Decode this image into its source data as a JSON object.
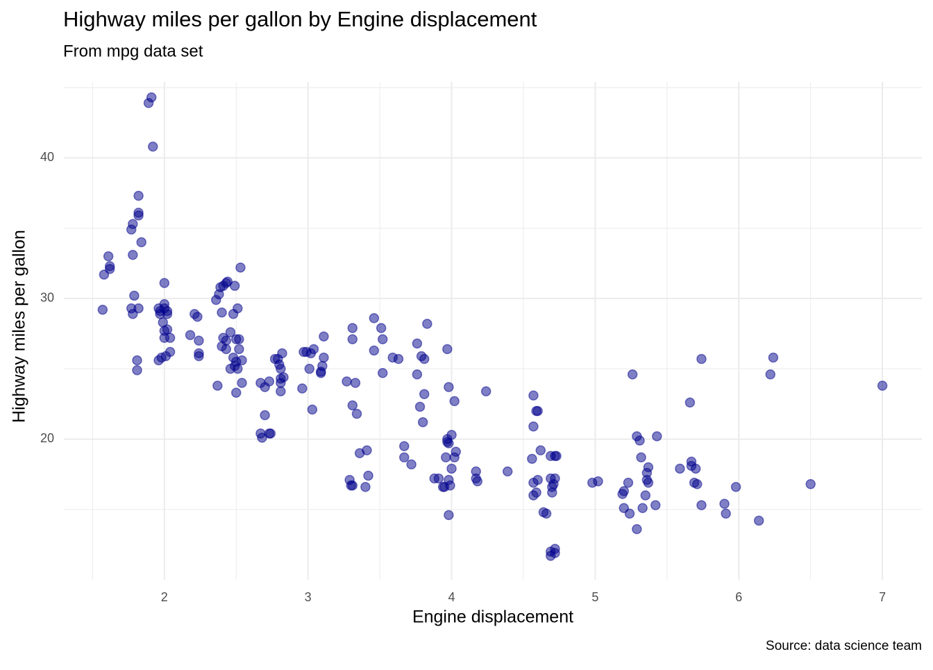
{
  "chart_data": {
    "type": "scatter",
    "title": "Highway miles per gallon by Engine displacement",
    "subtitle": "From mpg data set",
    "x_label": "Engine displacement",
    "y_label": "Highway miles per gallon",
    "caption": "Source: data science team",
    "color": "#00008b",
    "alpha": 0.5,
    "grid": true,
    "xlim": [
      1.3,
      7.275
    ],
    "ylim": [
      10.0,
      45.4
    ],
    "xticks": [
      2,
      3,
      4,
      5,
      6,
      7
    ],
    "yticks": [
      20,
      30,
      40
    ],
    "xminor": [
      1.5,
      2.5,
      3.5,
      4.5,
      5.5,
      6.5
    ],
    "yminor": [
      15,
      25,
      35,
      45
    ],
    "x": [
      1.57,
      1.58,
      1.61,
      1.62,
      1.62,
      1.78,
      1.77,
      1.78,
      1.77,
      1.78,
      1.79,
      1.82,
      1.81,
      1.81,
      1.82,
      1.82,
      1.82,
      1.84,
      1.89,
      1.91,
      1.92,
      1.96,
      1.97,
      1.97,
      2.0,
      2.0,
      2.02,
      1.99,
      2.0,
      2.02,
      2.0,
      2.04,
      1.98,
      2.01,
      2.04,
      1.96,
      2.0,
      2.02,
      2.18,
      2.21,
      2.23,
      2.24,
      2.24,
      2.24,
      2.36,
      2.38,
      2.39,
      2.41,
      2.43,
      2.44,
      2.4,
      2.41,
      2.4,
      2.43,
      2.43,
      2.37,
      2.46,
      2.46,
      2.48,
      2.49,
      2.53,
      2.51,
      2.5,
      2.52,
      2.48,
      2.5,
      2.49,
      2.51,
      2.52,
      2.54,
      2.5,
      2.54,
      2.67,
      2.7,
      2.73,
      2.7,
      2.67,
      2.68,
      2.73,
      2.74,
      2.77,
      2.79,
      2.8,
      2.81,
      2.81,
      2.81,
      2.83,
      2.82,
      2.81,
      2.96,
      2.97,
      2.99,
      3.01,
      3.02,
      3.04,
      3.03,
      3.09,
      3.1,
      3.11,
      3.11,
      3.09,
      3.27,
      3.31,
      3.31,
      3.33,
      3.31,
      3.34,
      3.29,
      3.3,
      3.31,
      3.36,
      3.41,
      3.4,
      3.42,
      3.46,
      3.51,
      3.52,
      3.46,
      3.52,
      3.59,
      3.63,
      3.67,
      3.67,
      3.72,
      3.76,
      3.76,
      3.78,
      3.79,
      3.81,
      3.81,
      3.8,
      3.83,
      3.88,
      3.91,
      3.94,
      3.97,
      3.98,
      4.02,
      3.97,
      3.98,
      4.0,
      4.03,
      4.02,
      3.96,
      4.0,
      3.98,
      3.99,
      3.98,
      3.97,
      3.95,
      4.17,
      4.17,
      4.18,
      4.24,
      4.39,
      4.57,
      4.57,
      4.59,
      4.6,
      4.56,
      4.57,
      4.57,
      4.59,
      4.6,
      4.62,
      4.64,
      4.66,
      4.69,
      4.72,
      4.73,
      4.69,
      4.72,
      4.7,
      4.7,
      4.71,
      4.69,
      4.69,
      4.72,
      4.72,
      4.98,
      5.02,
      5.19,
      5.2,
      5.23,
      5.2,
      5.24,
      5.26,
      5.29,
      5.31,
      5.29,
      5.32,
      5.33,
      5.37,
      5.36,
      5.36,
      5.37,
      5.35,
      5.42,
      5.43,
      5.59,
      5.66,
      5.67,
      5.67,
      5.7,
      5.69,
      5.71,
      5.74,
      5.74,
      5.9,
      5.91,
      5.98,
      6.14,
      6.22,
      6.24,
      6.5,
      7.0
    ],
    "y": [
      29.2,
      31.7,
      33.0,
      32.3,
      32.1,
      35.3,
      34.9,
      33.1,
      29.3,
      28.9,
      30.2,
      29.3,
      25.6,
      24.9,
      37.3,
      36.1,
      35.9,
      34.0,
      43.9,
      44.3,
      40.8,
      29.3,
      28.9,
      29.1,
      29.6,
      29.3,
      29.1,
      28.3,
      27.7,
      27.8,
      27.2,
      27.2,
      25.8,
      25.9,
      26.2,
      25.6,
      31.1,
      28.9,
      27.4,
      28.9,
      28.7,
      27.0,
      26.1,
      25.9,
      29.9,
      30.3,
      30.8,
      30.9,
      31.1,
      31.2,
      29.0,
      27.2,
      26.6,
      26.4,
      27.0,
      23.8,
      27.6,
      25.0,
      28.9,
      30.9,
      32.2,
      29.3,
      27.1,
      27.1,
      25.8,
      25.5,
      25.2,
      25.0,
      26.4,
      25.6,
      23.3,
      24.0,
      24.0,
      23.7,
      24.1,
      21.7,
      20.4,
      20.1,
      20.4,
      20.4,
      25.7,
      25.7,
      25.3,
      25.0,
      24.3,
      24.0,
      24.4,
      26.1,
      23.4,
      23.6,
      26.2,
      26.2,
      25.0,
      26.1,
      26.4,
      22.1,
      24.7,
      25.2,
      25.8,
      27.3,
      24.8,
      24.1,
      27.1,
      27.9,
      24.0,
      22.4,
      21.8,
      17.1,
      16.7,
      16.7,
      19.0,
      19.2,
      16.6,
      17.4,
      28.6,
      27.9,
      27.1,
      26.3,
      24.7,
      25.8,
      25.7,
      19.5,
      18.7,
      18.2,
      26.8,
      24.6,
      22.3,
      25.9,
      25.7,
      23.2,
      21.2,
      28.2,
      17.2,
      17.2,
      16.6,
      26.4,
      23.7,
      22.7,
      20.0,
      19.7,
      20.3,
      19.1,
      18.7,
      18.7,
      17.9,
      17.1,
      16.7,
      14.6,
      19.8,
      16.6,
      17.7,
      17.2,
      17.0,
      23.4,
      17.7,
      23.1,
      20.9,
      22.0,
      22.0,
      18.6,
      16.9,
      16.0,
      16.2,
      17.1,
      19.2,
      14.8,
      14.7,
      18.8,
      18.8,
      18.8,
      17.2,
      17.2,
      16.6,
      16.2,
      16.8,
      12.0,
      11.7,
      12.2,
      11.9,
      16.9,
      17.0,
      16.1,
      16.3,
      16.9,
      15.1,
      14.7,
      24.6,
      20.2,
      19.9,
      13.6,
      18.7,
      15.1,
      18.0,
      17.6,
      17.1,
      16.9,
      16.0,
      15.3,
      20.2,
      17.9,
      22.6,
      18.4,
      18.1,
      17.9,
      16.9,
      16.8,
      25.7,
      15.3,
      15.4,
      14.7,
      16.6,
      14.2,
      24.6,
      25.8,
      16.8,
      23.8
    ]
  }
}
